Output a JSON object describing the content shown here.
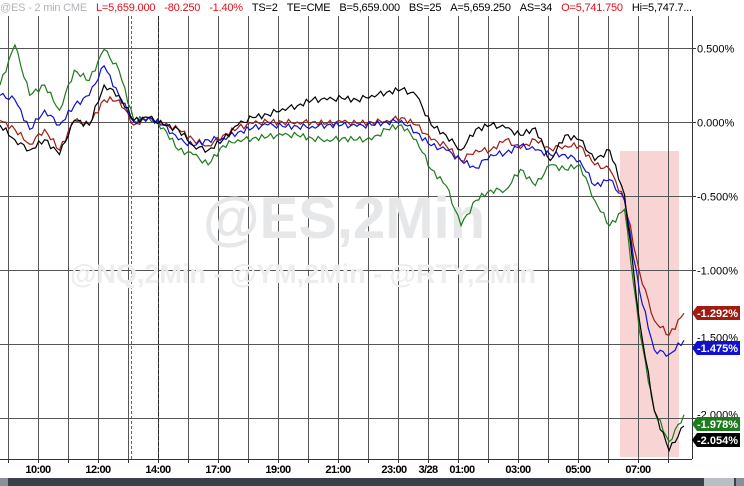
{
  "header": {
    "symbol": "@ES - 2 min  CME",
    "last": "L=5,659.000",
    "change": "-80.250",
    "change_pct": "-1.40%",
    "ts": "TS=2",
    "te": "TE=CME",
    "bid": "B=5,659.000",
    "bid_size": "BS=25",
    "ask": "A=5,659.250",
    "ask_size": "AS=34",
    "open": "O=5,741.750",
    "high": "Hi=5,747.7..."
  },
  "watermark": {
    "main": "@ES,2Min",
    "sub": "@NQ,2Min - @YM,2Min - @RTY,2Min"
  },
  "colors": {
    "black": "#000000",
    "red": "#a01c10",
    "blue": "#1010d0",
    "green": "#1e7a1e",
    "highlight": "#f8d4d4"
  },
  "chart_data": {
    "type": "line",
    "title": "",
    "xlabel": "",
    "ylabel": "",
    "ylim": [
      -2.25,
      0.7
    ],
    "y_ticks": [
      "0.500%",
      "0.000%",
      "-0.500%",
      "-1.000%",
      "-1.500%",
      "-2.000%"
    ],
    "y_tick_values": [
      0.5,
      0.0,
      -0.5,
      -1.0,
      -1.5,
      -2.0
    ],
    "x_ticks": [
      "10:00",
      "12:00",
      "14:00",
      "17:00",
      "19:00",
      "21:00",
      "23:00",
      "3/28",
      "01:00",
      "03:00",
      "05:00",
      "07:00"
    ],
    "grid": true,
    "series": [
      {
        "color": "#000000",
        "last_label": "-2.054%",
        "values": [
          -0.02,
          -0.12,
          -0.19,
          -0.12,
          -0.22,
          0.01,
          -0.02,
          0.25,
          0.18,
          0.01,
          0.03,
          -0.02,
          -0.05,
          -0.16,
          -0.19,
          -0.12,
          -0.02,
          0.03,
          0.05,
          0.09,
          0.11,
          0.15,
          0.15,
          0.16,
          0.15,
          0.18,
          0.2,
          0.22,
          0.18,
          -0.02,
          -0.09,
          -0.19,
          -0.05,
          -0.02,
          -0.04,
          -0.09,
          -0.04,
          -0.26,
          -0.09,
          -0.12,
          -0.26,
          -0.19,
          -0.49,
          -1.34,
          -1.95,
          -2.22,
          -2.054
        ]
      },
      {
        "color": "#a01c10",
        "last_label": "-1.292%",
        "values": [
          0.01,
          -0.05,
          -0.15,
          -0.05,
          -0.19,
          0.01,
          -0.02,
          0.15,
          0.15,
          -0.02,
          0.03,
          -0.02,
          -0.05,
          -0.12,
          -0.16,
          -0.09,
          -0.04,
          -0.01,
          0,
          0,
          0,
          0,
          -0.01,
          0,
          -0.01,
          0,
          0.01,
          0.03,
          -0.02,
          -0.12,
          -0.16,
          -0.26,
          -0.19,
          -0.19,
          -0.12,
          -0.18,
          -0.12,
          -0.18,
          -0.16,
          -0.16,
          -0.29,
          -0.32,
          -0.53,
          -1.01,
          -1.34,
          -1.44,
          -1.292
        ]
      },
      {
        "color": "#1010d0",
        "last_label": "-1.475%",
        "values": [
          0.18,
          0.15,
          -0.05,
          0.08,
          -0.02,
          0.11,
          0.18,
          0.38,
          0.18,
          0,
          0.03,
          -0.02,
          -0.12,
          -0.16,
          -0.12,
          -0.11,
          -0.07,
          -0.04,
          -0.02,
          -0.03,
          -0.03,
          -0.03,
          -0.02,
          -0.02,
          -0.03,
          -0.02,
          0,
          0.01,
          -0.07,
          -0.16,
          -0.19,
          -0.26,
          -0.31,
          -0.22,
          -0.21,
          -0.16,
          -0.19,
          -0.22,
          -0.22,
          -0.26,
          -0.43,
          -0.39,
          -0.53,
          -1.14,
          -1.54,
          -1.57,
          -1.475
        ]
      },
      {
        "color": "#1e7a1e",
        "last_label": "-1.978%",
        "values": [
          0.25,
          0.52,
          0.18,
          0.25,
          0.08,
          0.35,
          0.28,
          0.49,
          0.35,
          0.01,
          0.03,
          -0.04,
          -0.19,
          -0.22,
          -0.29,
          -0.16,
          -0.12,
          -0.11,
          -0.1,
          -0.09,
          -0.09,
          -0.11,
          -0.12,
          -0.11,
          -0.12,
          -0.12,
          -0.05,
          -0.02,
          -0.12,
          -0.32,
          -0.43,
          -0.7,
          -0.53,
          -0.46,
          -0.46,
          -0.32,
          -0.43,
          -0.29,
          -0.32,
          -0.29,
          -0.53,
          -0.7,
          -0.59,
          -1.41,
          -1.95,
          -2.16,
          -1.978
        ]
      }
    ]
  }
}
